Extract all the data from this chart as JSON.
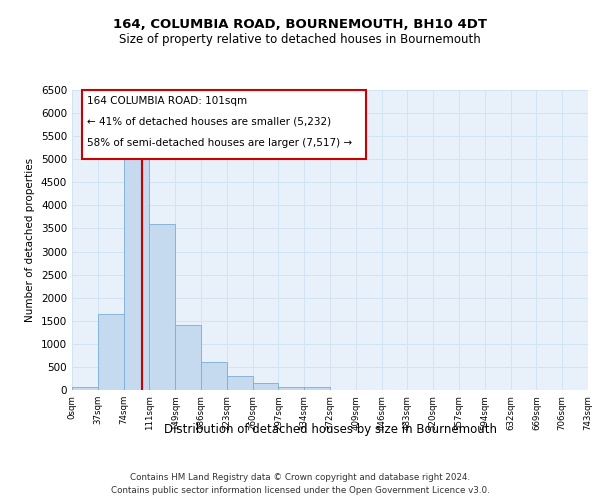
{
  "title": "164, COLUMBIA ROAD, BOURNEMOUTH, BH10 4DT",
  "subtitle": "Size of property relative to detached houses in Bournemouth",
  "xlabel": "Distribution of detached houses by size in Bournemouth",
  "ylabel": "Number of detached properties",
  "footnote1": "Contains HM Land Registry data © Crown copyright and database right 2024.",
  "footnote2": "Contains public sector information licensed under the Open Government Licence v3.0.",
  "bar_values": [
    75,
    1650,
    5100,
    3600,
    1400,
    600,
    300,
    150,
    75,
    75,
    0,
    0,
    0,
    0,
    0,
    0,
    0,
    0,
    0,
    0
  ],
  "bin_labels": [
    "0sqm",
    "37sqm",
    "74sqm",
    "111sqm",
    "149sqm",
    "186sqm",
    "223sqm",
    "260sqm",
    "297sqm",
    "334sqm",
    "372sqm",
    "409sqm",
    "446sqm",
    "483sqm",
    "520sqm",
    "557sqm",
    "594sqm",
    "632sqm",
    "669sqm",
    "706sqm",
    "743sqm"
  ],
  "bar_color": "#c5d9ef",
  "bar_edge_color": "#7aadd4",
  "grid_color": "#d0e4f5",
  "bg_color": "#e8f1fa",
  "red_line_x": 3,
  "red_line_color": "#cc0000",
  "annotation_line1": "164 COLUMBIA ROAD: 101sqm",
  "annotation_line2": "← 41% of detached houses are smaller (5,232)",
  "annotation_line3": "58% of semi-detached houses are larger (7,517) →",
  "annotation_box_color": "#cc0000",
  "ylim": [
    0,
    6500
  ],
  "yticks": [
    0,
    500,
    1000,
    1500,
    2000,
    2500,
    3000,
    3500,
    4000,
    4500,
    5000,
    5500,
    6000,
    6500
  ]
}
